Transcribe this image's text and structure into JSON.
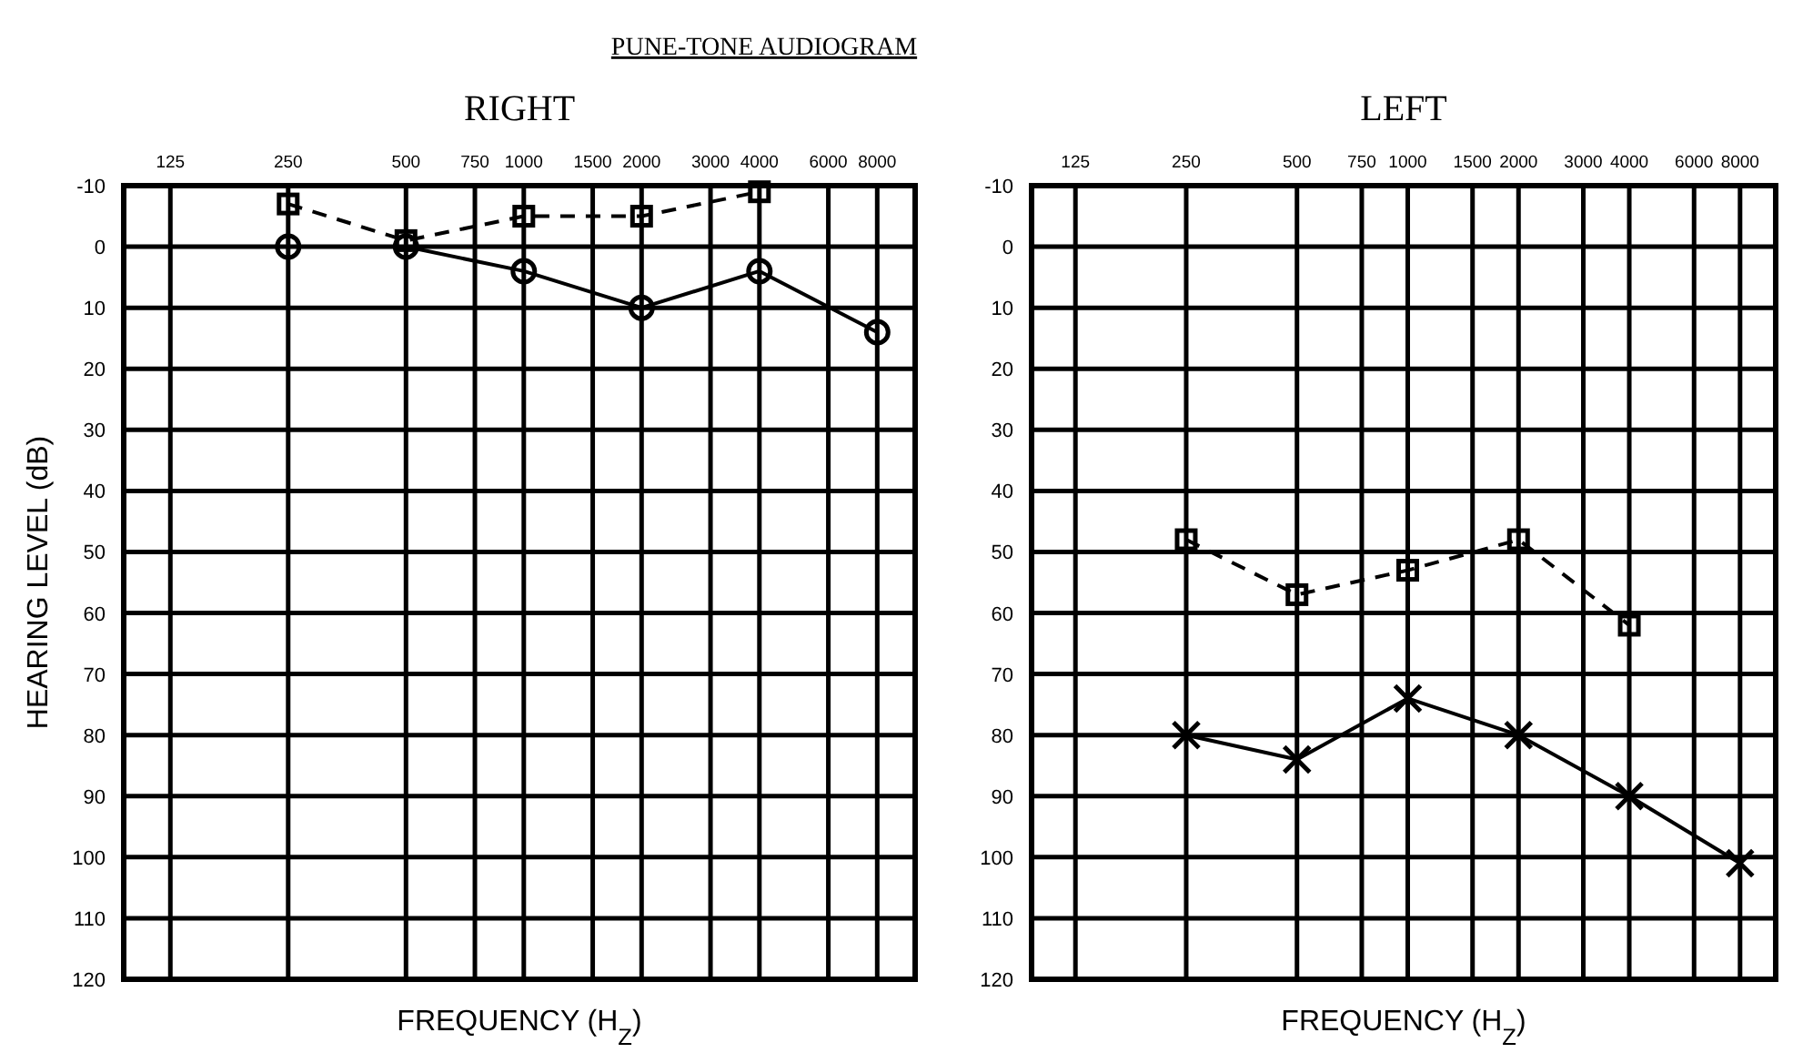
{
  "chart_data": [
    {
      "type": "line",
      "title": "RIGHT",
      "annotations": [
        "PUNE-TONE AUDIOGRAM"
      ],
      "xlabel": "FREQUENCY (H$_{Z}$)",
      "ylabel": "HEARING LEVEL (dB)",
      "log": "x",
      "xlim": [
        95,
        10000
      ],
      "xticks": [
        125,
        250,
        500,
        750,
        1000,
        1500,
        2000,
        3000,
        4000,
        6000,
        8000
      ],
      "ylim": [
        120,
        -10
      ],
      "yticks": [
        -10,
        0,
        10,
        20,
        30,
        40,
        50,
        60,
        70,
        80,
        90,
        100,
        110,
        120
      ],
      "grid": true,
      "series": [
        {
          "color": "#000000",
          "marker": "circle",
          "line_style": "solid",
          "x": [
            250,
            500,
            1000,
            2000,
            4000,
            8000
          ],
          "values": [
            0,
            0,
            4,
            10,
            4,
            14
          ]
        },
        {
          "color": "#000000",
          "marker": "square",
          "line_style": "dashed",
          "x": [
            250,
            500,
            1000,
            2000,
            4000
          ],
          "values": [
            -7,
            -1,
            -5,
            -5,
            -9
          ]
        }
      ]
    },
    {
      "type": "line",
      "title": "LEFT",
      "xlabel": "FREQUENCY (H$_{Z}$)",
      "log": "x",
      "xlim": [
        95,
        10000
      ],
      "xticks": [
        125,
        250,
        500,
        750,
        1000,
        1500,
        2000,
        3000,
        4000,
        6000,
        8000
      ],
      "ylim": [
        120,
        -10
      ],
      "yticks": [
        -10,
        0,
        10,
        20,
        30,
        40,
        50,
        60,
        70,
        80,
        90,
        100,
        110,
        120
      ],
      "grid": true,
      "series": [
        {
          "color": "#000000",
          "marker": "cross",
          "line_style": "solid",
          "x": [
            250,
            500,
            1000,
            2000,
            4000,
            8000
          ],
          "values": [
            80,
            84,
            74,
            80,
            90,
            101
          ]
        },
        {
          "color": "#000000",
          "marker": "square",
          "line_style": "dashed",
          "x": [
            250,
            500,
            1000,
            2000,
            4000
          ],
          "values": [
            48,
            57,
            53,
            48,
            62
          ]
        }
      ]
    }
  ]
}
